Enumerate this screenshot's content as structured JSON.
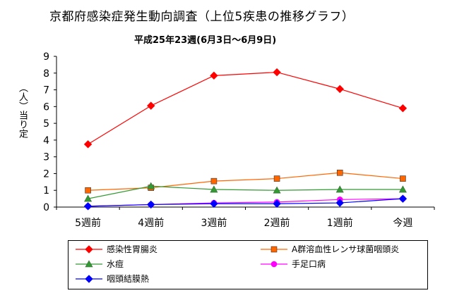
{
  "title": "京都府感染症発生動向調査（上位5疾患の推移グラフ）",
  "subtitle": "平成25年23週(6月3日～6月9日)",
  "chart_data": {
    "type": "line",
    "title": "京都府感染症発生動向調査（上位5疾患の推移グラフ）",
    "subtitle": "平成25年23週(6月3日～6月9日)",
    "xlabel": "",
    "ylabel": "（人）当り定",
    "categories": [
      "5週前",
      "4週前",
      "3週前",
      "2週前",
      "1週前",
      "今週"
    ],
    "ylim": [
      0,
      9
    ],
    "yticks": [
      "0",
      "1",
      "2",
      "3",
      "4",
      "5",
      "6",
      "7",
      "8",
      "9"
    ],
    "grid": false,
    "legend_position": "bottom",
    "series": [
      {
        "name": "感染性胃腸炎",
        "color": "#ff0000",
        "marker": "diamond",
        "values": [
          3.75,
          6.05,
          7.85,
          8.05,
          7.05,
          5.9
        ]
      },
      {
        "name": "A群溶血性レンサ球菌咽頭炎",
        "color": "#ff6600",
        "marker": "square",
        "values": [
          1.0,
          1.15,
          1.55,
          1.7,
          2.05,
          1.7
        ]
      },
      {
        "name": "水痘",
        "color": "#339933",
        "marker": "triangle",
        "values": [
          0.5,
          1.25,
          1.05,
          1.0,
          1.05,
          1.05
        ]
      },
      {
        "name": "手足口病",
        "color": "#ff00ff",
        "marker": "circle",
        "values": [
          0.05,
          0.15,
          0.25,
          0.3,
          0.45,
          0.5
        ]
      },
      {
        "name": "咽頭結膜熱",
        "color": "#0000ff",
        "marker": "diamond",
        "values": [
          0.05,
          0.15,
          0.2,
          0.2,
          0.25,
          0.5
        ]
      }
    ]
  }
}
